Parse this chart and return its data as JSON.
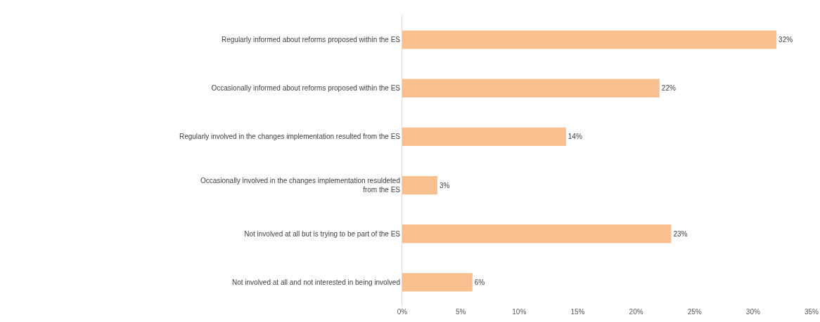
{
  "chart_data": {
    "type": "bar",
    "orientation": "horizontal",
    "categories": [
      "Regularly informed about reforms proposed within the ES",
      "Occasionally informed about reforms proposed within the ES",
      "Regularly involved in the changes implementation resulted from the ES",
      "Occasionally involved in the changes implementation resuldeted from the ES",
      "Not involved at all but is trying to be part of the ES",
      "Not involved at all and not interested in being involved"
    ],
    "values": [
      32,
      22,
      14,
      3,
      23,
      6
    ],
    "value_labels": [
      "32%",
      "22%",
      "14%",
      "3%",
      "23%",
      "6%"
    ],
    "color": "#f9bf8f",
    "xlim": [
      0,
      35
    ],
    "xticks": [
      {
        "value": 0,
        "label": "0%"
      },
      {
        "value": 5,
        "label": "5%"
      },
      {
        "value": 10,
        "label": "10%"
      },
      {
        "value": 15,
        "label": "15%"
      },
      {
        "value": 20,
        "label": "20%"
      },
      {
        "value": 25,
        "label": "25%"
      },
      {
        "value": 30,
        "label": "30%"
      },
      {
        "value": 35,
        "label": "35%"
      }
    ],
    "grid": false
  }
}
